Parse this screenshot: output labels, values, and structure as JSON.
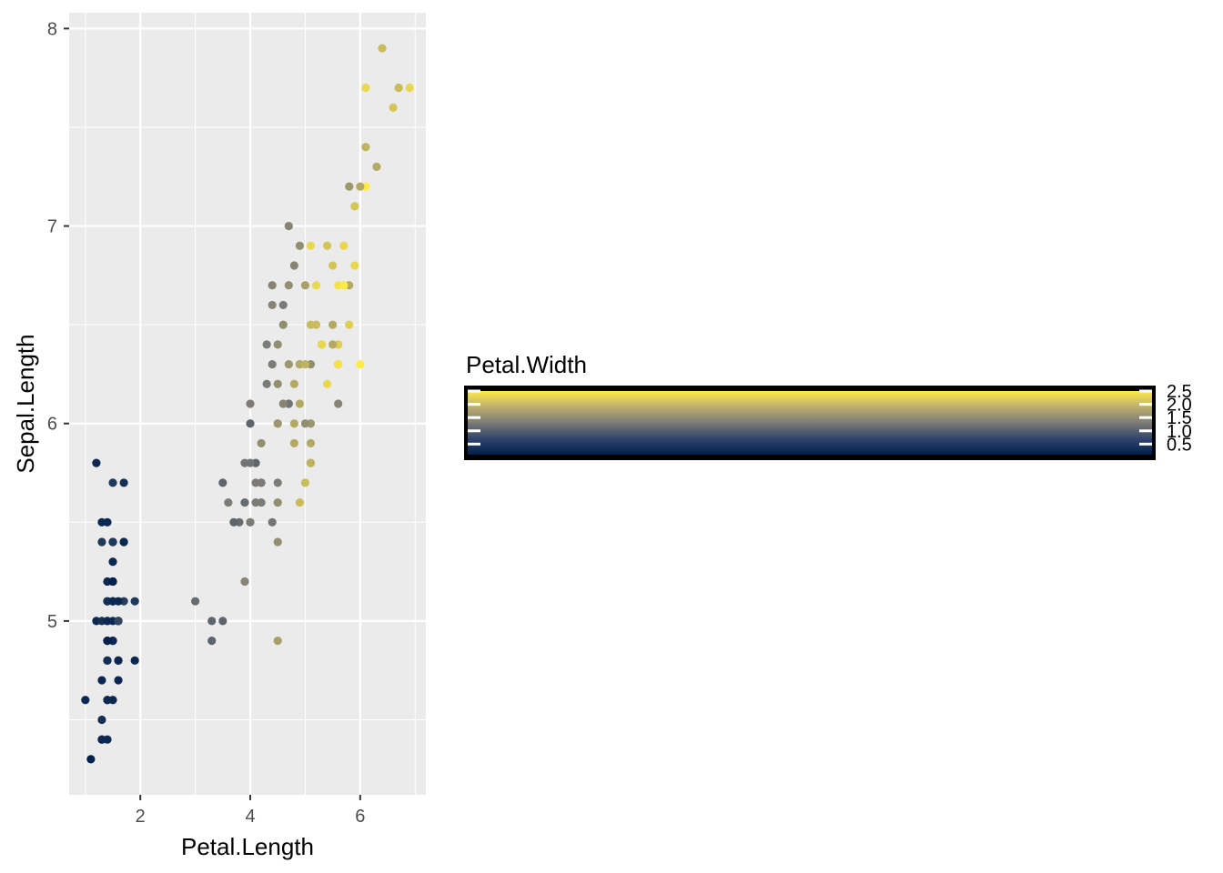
{
  "chart_data": {
    "type": "scatter",
    "x_variable": "Petal.Length",
    "y_variable": "Sepal.Length",
    "color_variable": "Petal.Width",
    "xlabel": "Petal.Length",
    "ylabel": "Sepal.Length",
    "xlim": [
      0.705,
      7.195
    ],
    "ylim": [
      4.12,
      8.08
    ],
    "x_ticks": [
      2,
      4,
      6
    ],
    "x_tick_labels": [
      "2",
      "4",
      "6"
    ],
    "y_ticks": [
      5,
      6,
      7,
      8
    ],
    "y_tick_labels": [
      "5",
      "6",
      "7",
      "8"
    ],
    "grid": true,
    "panel_background": "#EBEBEB",
    "gridline_color": "#FFFFFF",
    "color_scale": {
      "low": "#00204D",
      "mid": "#7C7B78",
      "high": "#FFEA46",
      "min": 0.1,
      "max": 2.5
    },
    "legend": {
      "title": "Petal.Width",
      "position": "right",
      "breaks": [
        2.5,
        2.0,
        1.5,
        1.0,
        0.5
      ],
      "labels": [
        "2.5",
        "2.0",
        "1.5",
        "1.0",
        "0.5"
      ]
    },
    "points": [
      {
        "x": 1.4,
        "y": 5.1,
        "c": 0.2
      },
      {
        "x": 1.4,
        "y": 4.9,
        "c": 0.2
      },
      {
        "x": 1.3,
        "y": 4.7,
        "c": 0.2
      },
      {
        "x": 1.5,
        "y": 4.6,
        "c": 0.2
      },
      {
        "x": 1.4,
        "y": 5.0,
        "c": 0.2
      },
      {
        "x": 1.7,
        "y": 5.4,
        "c": 0.4
      },
      {
        "x": 1.4,
        "y": 4.6,
        "c": 0.3
      },
      {
        "x": 1.5,
        "y": 5.0,
        "c": 0.2
      },
      {
        "x": 1.4,
        "y": 4.4,
        "c": 0.2
      },
      {
        "x": 1.5,
        "y": 4.9,
        "c": 0.1
      },
      {
        "x": 1.5,
        "y": 5.4,
        "c": 0.2
      },
      {
        "x": 1.6,
        "y": 4.8,
        "c": 0.2
      },
      {
        "x": 1.4,
        "y": 4.8,
        "c": 0.1
      },
      {
        "x": 1.1,
        "y": 4.3,
        "c": 0.1
      },
      {
        "x": 1.2,
        "y": 5.8,
        "c": 0.2
      },
      {
        "x": 1.5,
        "y": 5.7,
        "c": 0.4
      },
      {
        "x": 1.3,
        "y": 5.4,
        "c": 0.4
      },
      {
        "x": 1.4,
        "y": 5.1,
        "c": 0.3
      },
      {
        "x": 1.7,
        "y": 5.7,
        "c": 0.3
      },
      {
        "x": 1.5,
        "y": 5.1,
        "c": 0.3
      },
      {
        "x": 1.7,
        "y": 5.4,
        "c": 0.2
      },
      {
        "x": 1.5,
        "y": 5.1,
        "c": 0.4
      },
      {
        "x": 1.0,
        "y": 4.6,
        "c": 0.2
      },
      {
        "x": 1.7,
        "y": 5.1,
        "c": 0.5
      },
      {
        "x": 1.9,
        "y": 4.8,
        "c": 0.2
      },
      {
        "x": 1.6,
        "y": 5.0,
        "c": 0.2
      },
      {
        "x": 1.6,
        "y": 5.0,
        "c": 0.4
      },
      {
        "x": 1.5,
        "y": 5.2,
        "c": 0.2
      },
      {
        "x": 1.4,
        "y": 5.2,
        "c": 0.2
      },
      {
        "x": 1.6,
        "y": 4.7,
        "c": 0.2
      },
      {
        "x": 1.6,
        "y": 4.8,
        "c": 0.2
      },
      {
        "x": 1.5,
        "y": 5.4,
        "c": 0.4
      },
      {
        "x": 1.5,
        "y": 5.2,
        "c": 0.1
      },
      {
        "x": 1.4,
        "y": 5.5,
        "c": 0.2
      },
      {
        "x": 1.5,
        "y": 4.9,
        "c": 0.2
      },
      {
        "x": 1.2,
        "y": 5.0,
        "c": 0.2
      },
      {
        "x": 1.3,
        "y": 5.5,
        "c": 0.2
      },
      {
        "x": 1.4,
        "y": 4.9,
        "c": 0.1
      },
      {
        "x": 1.3,
        "y": 4.4,
        "c": 0.2
      },
      {
        "x": 1.5,
        "y": 5.1,
        "c": 0.2
      },
      {
        "x": 1.3,
        "y": 5.0,
        "c": 0.3
      },
      {
        "x": 1.3,
        "y": 4.5,
        "c": 0.3
      },
      {
        "x": 1.3,
        "y": 4.4,
        "c": 0.2
      },
      {
        "x": 1.6,
        "y": 5.0,
        "c": 0.6
      },
      {
        "x": 1.9,
        "y": 5.1,
        "c": 0.4
      },
      {
        "x": 1.4,
        "y": 4.8,
        "c": 0.3
      },
      {
        "x": 1.6,
        "y": 5.1,
        "c": 0.2
      },
      {
        "x": 1.4,
        "y": 4.6,
        "c": 0.2
      },
      {
        "x": 1.5,
        "y": 5.3,
        "c": 0.2
      },
      {
        "x": 1.4,
        "y": 5.0,
        "c": 0.2
      },
      {
        "x": 4.7,
        "y": 7.0,
        "c": 1.4
      },
      {
        "x": 4.5,
        "y": 6.4,
        "c": 1.5
      },
      {
        "x": 4.9,
        "y": 6.9,
        "c": 1.5
      },
      {
        "x": 4.0,
        "y": 5.5,
        "c": 1.3
      },
      {
        "x": 4.6,
        "y": 6.5,
        "c": 1.5
      },
      {
        "x": 4.5,
        "y": 5.7,
        "c": 1.3
      },
      {
        "x": 4.7,
        "y": 6.3,
        "c": 1.6
      },
      {
        "x": 3.3,
        "y": 4.9,
        "c": 1.0
      },
      {
        "x": 4.6,
        "y": 6.6,
        "c": 1.3
      },
      {
        "x": 3.9,
        "y": 5.2,
        "c": 1.4
      },
      {
        "x": 3.5,
        "y": 5.0,
        "c": 1.0
      },
      {
        "x": 4.2,
        "y": 5.9,
        "c": 1.5
      },
      {
        "x": 4.0,
        "y": 6.0,
        "c": 1.0
      },
      {
        "x": 4.7,
        "y": 6.1,
        "c": 1.4
      },
      {
        "x": 3.6,
        "y": 5.6,
        "c": 1.3
      },
      {
        "x": 4.4,
        "y": 6.7,
        "c": 1.4
      },
      {
        "x": 4.5,
        "y": 5.6,
        "c": 1.5
      },
      {
        "x": 4.1,
        "y": 5.8,
        "c": 1.0
      },
      {
        "x": 4.5,
        "y": 6.2,
        "c": 1.5
      },
      {
        "x": 3.9,
        "y": 5.6,
        "c": 1.1
      },
      {
        "x": 4.8,
        "y": 5.9,
        "c": 1.8
      },
      {
        "x": 4.0,
        "y": 6.1,
        "c": 1.3
      },
      {
        "x": 4.9,
        "y": 6.3,
        "c": 1.5
      },
      {
        "x": 4.7,
        "y": 6.1,
        "c": 1.2
      },
      {
        "x": 4.3,
        "y": 6.4,
        "c": 1.3
      },
      {
        "x": 4.4,
        "y": 6.6,
        "c": 1.4
      },
      {
        "x": 4.8,
        "y": 6.8,
        "c": 1.4
      },
      {
        "x": 5.0,
        "y": 6.7,
        "c": 1.7
      },
      {
        "x": 4.5,
        "y": 6.0,
        "c": 1.5
      },
      {
        "x": 3.5,
        "y": 5.7,
        "c": 1.0
      },
      {
        "x": 3.8,
        "y": 5.5,
        "c": 1.1
      },
      {
        "x": 3.7,
        "y": 5.5,
        "c": 1.0
      },
      {
        "x": 3.9,
        "y": 5.8,
        "c": 1.2
      },
      {
        "x": 5.1,
        "y": 6.0,
        "c": 1.6
      },
      {
        "x": 4.5,
        "y": 5.4,
        "c": 1.5
      },
      {
        "x": 4.5,
        "y": 6.0,
        "c": 1.6
      },
      {
        "x": 4.7,
        "y": 6.7,
        "c": 1.5
      },
      {
        "x": 4.4,
        "y": 6.3,
        "c": 1.3
      },
      {
        "x": 4.1,
        "y": 5.6,
        "c": 1.3
      },
      {
        "x": 4.0,
        "y": 5.5,
        "c": 1.3
      },
      {
        "x": 4.4,
        "y": 5.5,
        "c": 1.2
      },
      {
        "x": 4.6,
        "y": 6.1,
        "c": 1.4
      },
      {
        "x": 4.0,
        "y": 5.8,
        "c": 1.2
      },
      {
        "x": 3.3,
        "y": 5.0,
        "c": 1.0
      },
      {
        "x": 4.2,
        "y": 5.6,
        "c": 1.3
      },
      {
        "x": 4.2,
        "y": 5.7,
        "c": 1.2
      },
      {
        "x": 4.2,
        "y": 5.7,
        "c": 1.3
      },
      {
        "x": 4.3,
        "y": 6.2,
        "c": 1.3
      },
      {
        "x": 3.0,
        "y": 5.1,
        "c": 1.1
      },
      {
        "x": 4.1,
        "y": 5.7,
        "c": 1.3
      },
      {
        "x": 6.0,
        "y": 6.3,
        "c": 2.5
      },
      {
        "x": 5.1,
        "y": 5.8,
        "c": 1.9
      },
      {
        "x": 5.9,
        "y": 7.1,
        "c": 2.1
      },
      {
        "x": 5.6,
        "y": 6.3,
        "c": 1.8
      },
      {
        "x": 5.8,
        "y": 6.5,
        "c": 2.2
      },
      {
        "x": 6.6,
        "y": 7.6,
        "c": 2.1
      },
      {
        "x": 4.5,
        "y": 4.9,
        "c": 1.7
      },
      {
        "x": 6.3,
        "y": 7.3,
        "c": 1.8
      },
      {
        "x": 5.8,
        "y": 6.7,
        "c": 1.8
      },
      {
        "x": 6.1,
        "y": 7.2,
        "c": 2.5
      },
      {
        "x": 5.1,
        "y": 6.5,
        "c": 2.0
      },
      {
        "x": 5.3,
        "y": 6.4,
        "c": 1.9
      },
      {
        "x": 5.5,
        "y": 6.8,
        "c": 2.1
      },
      {
        "x": 5.0,
        "y": 5.7,
        "c": 2.0
      },
      {
        "x": 5.1,
        "y": 5.8,
        "c": 2.4
      },
      {
        "x": 5.3,
        "y": 6.4,
        "c": 2.3
      },
      {
        "x": 5.5,
        "y": 6.5,
        "c": 1.8
      },
      {
        "x": 6.7,
        "y": 7.7,
        "c": 2.2
      },
      {
        "x": 6.9,
        "y": 7.7,
        "c": 2.3
      },
      {
        "x": 5.0,
        "y": 6.0,
        "c": 1.5
      },
      {
        "x": 5.7,
        "y": 6.9,
        "c": 2.3
      },
      {
        "x": 4.9,
        "y": 5.6,
        "c": 2.0
      },
      {
        "x": 6.7,
        "y": 7.7,
        "c": 2.0
      },
      {
        "x": 4.9,
        "y": 6.3,
        "c": 1.8
      },
      {
        "x": 5.7,
        "y": 6.7,
        "c": 2.1
      },
      {
        "x": 6.0,
        "y": 7.2,
        "c": 1.8
      },
      {
        "x": 4.8,
        "y": 6.2,
        "c": 1.8
      },
      {
        "x": 4.9,
        "y": 6.1,
        "c": 1.8
      },
      {
        "x": 5.6,
        "y": 6.4,
        "c": 2.1
      },
      {
        "x": 5.8,
        "y": 7.2,
        "c": 1.6
      },
      {
        "x": 6.1,
        "y": 7.4,
        "c": 1.9
      },
      {
        "x": 6.4,
        "y": 7.9,
        "c": 2.0
      },
      {
        "x": 5.6,
        "y": 6.4,
        "c": 2.2
      },
      {
        "x": 5.1,
        "y": 6.3,
        "c": 1.5
      },
      {
        "x": 5.6,
        "y": 6.1,
        "c": 1.4
      },
      {
        "x": 6.1,
        "y": 7.7,
        "c": 2.3
      },
      {
        "x": 5.6,
        "y": 6.3,
        "c": 2.4
      },
      {
        "x": 5.5,
        "y": 6.4,
        "c": 1.8
      },
      {
        "x": 4.8,
        "y": 6.0,
        "c": 1.8
      },
      {
        "x": 5.4,
        "y": 6.9,
        "c": 2.1
      },
      {
        "x": 5.6,
        "y": 6.7,
        "c": 2.4
      },
      {
        "x": 5.1,
        "y": 6.9,
        "c": 2.3
      },
      {
        "x": 5.1,
        "y": 5.8,
        "c": 1.9
      },
      {
        "x": 5.9,
        "y": 6.8,
        "c": 2.3
      },
      {
        "x": 5.7,
        "y": 6.7,
        "c": 2.5
      },
      {
        "x": 5.2,
        "y": 6.7,
        "c": 2.3
      },
      {
        "x": 5.0,
        "y": 6.3,
        "c": 1.9
      },
      {
        "x": 5.2,
        "y": 6.5,
        "c": 2.0
      },
      {
        "x": 5.4,
        "y": 6.2,
        "c": 2.3
      },
      {
        "x": 5.1,
        "y": 5.9,
        "c": 1.8
      }
    ]
  }
}
